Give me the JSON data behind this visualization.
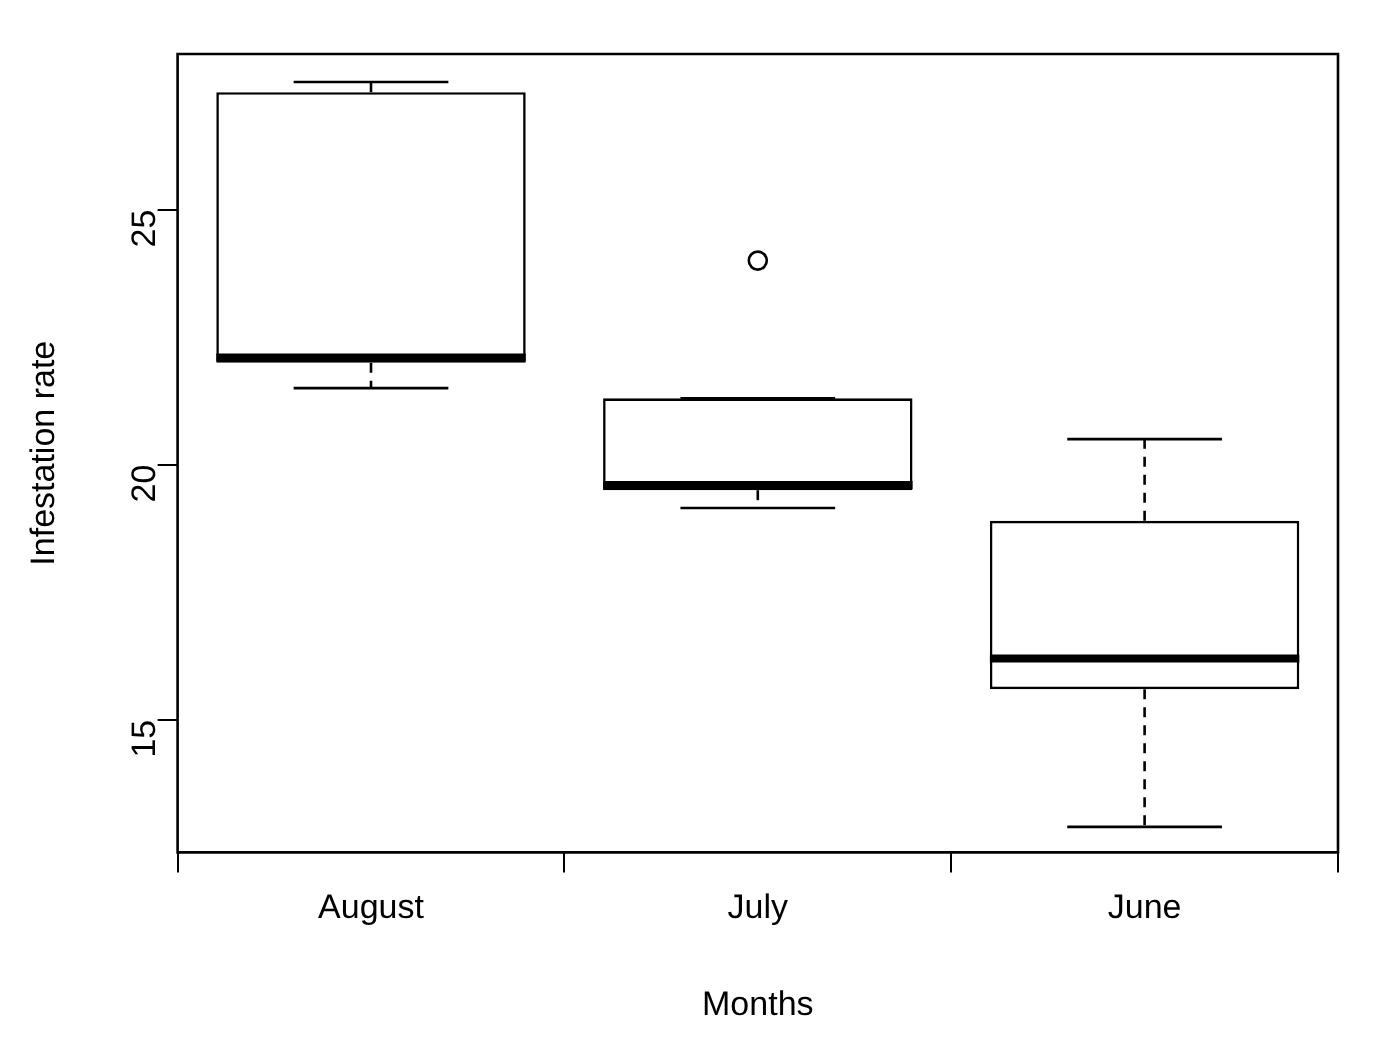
{
  "chart_data": {
    "type": "box",
    "xlabel": "Months",
    "ylabel": "Infestation rate",
    "categories": [
      "August",
      "July",
      "June"
    ],
    "boxes": [
      {
        "low": 21.5,
        "q1": 22.0,
        "median": 22.1,
        "q3": 27.3,
        "high": 27.5
      },
      {
        "low": 19.15,
        "q1": 19.5,
        "median": 19.6,
        "q3": 21.3,
        "high": 21.3,
        "outliers": [
          24.0
        ]
      },
      {
        "low": 12.9,
        "q1": 15.6,
        "median": 16.2,
        "q3": 18.9,
        "high": 20.5
      }
    ],
    "ylim": [
      12.4,
      28.05
    ],
    "yticks": [
      15,
      20,
      25
    ],
    "grid": false,
    "legend": false,
    "line_style": "dashed"
  }
}
